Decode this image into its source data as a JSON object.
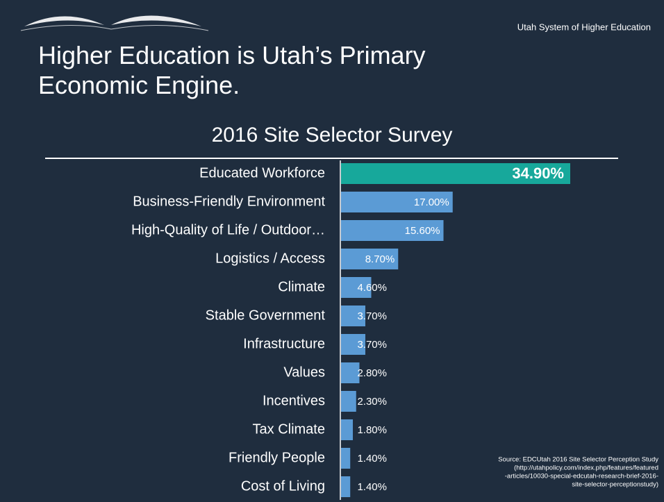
{
  "header": "Utah System of Higher Education",
  "chart_data": {
    "type": "barh",
    "title": "Higher Education is Utah’s Primary Economic Engine.",
    "subtitle": "2016 Site Selector Survey",
    "categories": [
      "Educated Workforce",
      "Business-Friendly  Environment",
      "High-Quality of Life / Outdoor…",
      "Logistics / Access",
      "Climate",
      "Stable Government",
      "Infrastructure",
      "Values",
      "Incentives",
      "Tax Climate",
      "Friendly People",
      "Cost of Living"
    ],
    "values": [
      34.9,
      17.0,
      15.6,
      8.7,
      4.6,
      3.7,
      3.7,
      2.8,
      2.3,
      1.8,
      1.4,
      1.4
    ],
    "value_labels": [
      "34.90%",
      "17.00%",
      "15.60%",
      "8.70%",
      "4.60%",
      "3.70%",
      "3.70%",
      "2.80%",
      "2.30%",
      "1.80%",
      "1.40%",
      "1.40%"
    ],
    "colors": [
      "#17a89b",
      "#5b9bd5",
      "#5b9bd5",
      "#5b9bd5",
      "#5b9bd5",
      "#5b9bd5",
      "#5b9bd5",
      "#5b9bd5",
      "#5b9bd5",
      "#5b9bd5",
      "#5b9bd5",
      "#5b9bd5"
    ],
    "source": [
      "Source: EDCUtah 2016 Site Selector Perception Study",
      "(http://utahpolicy.com/index.php/features/featured",
      "-articles/10030-special-edcutah-research-brief-2016-",
      "site-selector-perceptionstudy)"
    ]
  }
}
